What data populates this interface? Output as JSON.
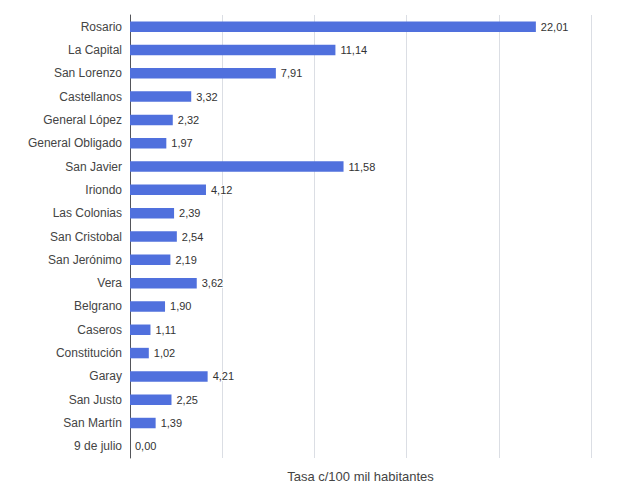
{
  "chart_data": {
    "type": "bar",
    "orientation": "horizontal",
    "xlabel": "Tasa c/100 mil habitantes",
    "categories": [
      "9 de julio",
      "San Martín",
      "San Justo",
      "Garay",
      "Constitución",
      "Caseros",
      "Belgrano",
      "Vera",
      "San Jerónimo",
      "San Cristobal",
      "Las Colonias",
      "Iriondo",
      "San Javier",
      "General Obligado",
      "General López",
      "Castellanos",
      "San Lorenzo",
      "La Capital",
      "Rosario"
    ],
    "values": [
      0.0,
      1.39,
      2.25,
      4.21,
      1.02,
      1.11,
      1.9,
      3.62,
      2.19,
      2.54,
      2.39,
      4.12,
      11.58,
      1.97,
      2.32,
      3.32,
      7.91,
      11.14,
      22.01
    ],
    "value_labels": [
      "0,00",
      "1,39",
      "2,25",
      "4,21",
      "1,02",
      "1,11",
      "1,90",
      "3,62",
      "2,19",
      "2,54",
      "2,39",
      "4,12",
      "11,58",
      "1,97",
      "2,32",
      "3,32",
      "7,91",
      "11,14",
      "22,01"
    ],
    "xlim": [
      0,
      25
    ],
    "xticks": [
      0,
      5,
      10,
      15,
      20,
      25
    ],
    "grid": true,
    "data_labels": true,
    "tick_labels": "y"
  }
}
